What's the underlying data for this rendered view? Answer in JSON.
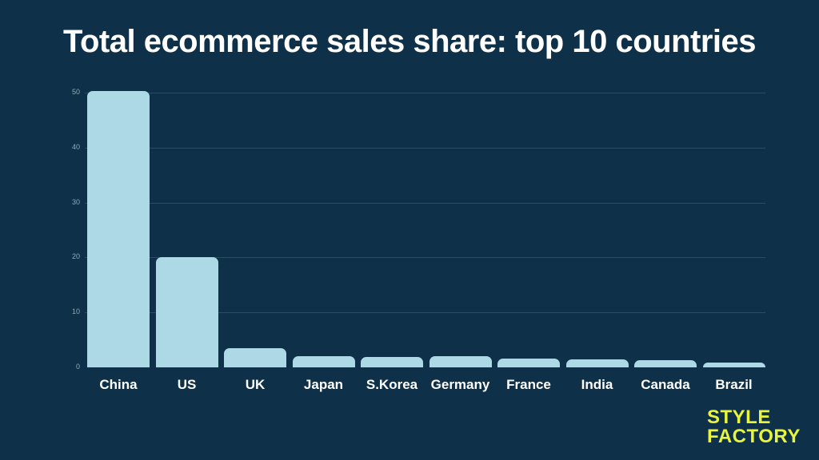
{
  "title": "Total ecommerce sales share: top 10 countries",
  "brand": {
    "line1": "STYLE",
    "line2": "FACTORY",
    "color": "#e8f53a"
  },
  "colors": {
    "background": "#0e3149",
    "bar": "#add8e6",
    "grid": "#2b4d64",
    "text": "#ffffff"
  },
  "chart_data": {
    "type": "bar",
    "title": "Total ecommerce sales share: top 10 countries",
    "xlabel": "",
    "ylabel": "",
    "categories": [
      "China",
      "US",
      "UK",
      "Japan",
      "S.Korea",
      "Germany",
      "France",
      "India",
      "Canada",
      "Brazil"
    ],
    "values": [
      50.3,
      20.0,
      3.5,
      2.0,
      1.9,
      2.1,
      1.6,
      1.5,
      1.3,
      0.9
    ],
    "ylim": [
      0,
      50
    ],
    "yticks": [
      "0",
      "10",
      "20",
      "30",
      "40",
      "50"
    ],
    "grid": true,
    "legend": null
  }
}
